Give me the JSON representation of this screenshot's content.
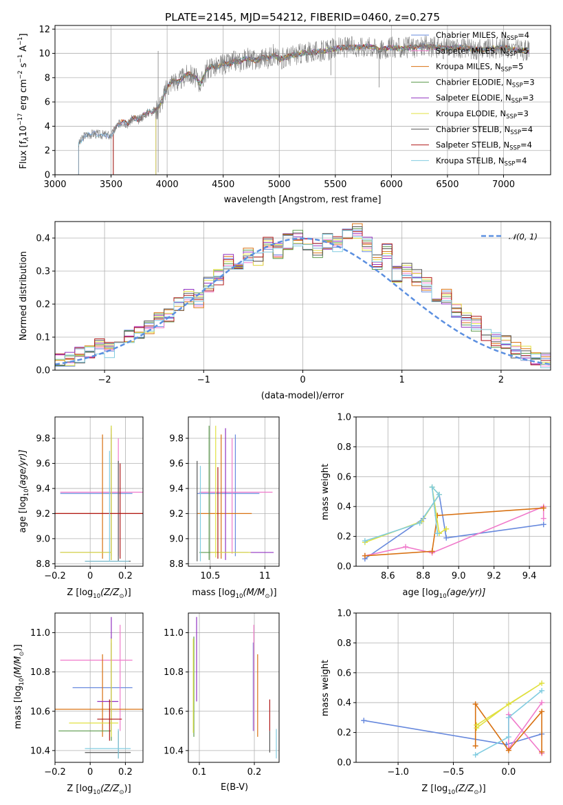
{
  "figure": {
    "title": "PLATE=2145, MJD=54212, FIBERID=0460, z=0.275"
  },
  "colors": {
    "Chabrier MILES": "#6688dd",
    "Salpeter MILES": "#f07acb",
    "Kroupa MILES": "#d87010",
    "Chabrier ELODIE": "#5a9a4a",
    "Salpeter ELODIE": "#9030c0",
    "Kroupa ELODIE": "#e0e040",
    "Chabrier STELIB": "#555555",
    "Salpeter STELIB": "#b01818",
    "Kroupa STELIB": "#80cce0",
    "data": "#7f7f7f",
    "normal": "#5b8fe0"
  },
  "chart_data": [
    {
      "id": "spectrum",
      "type": "line",
      "title": "PLATE=2145, MJD=54212, FIBERID=0460, z=0.275",
      "xlabel": "wavelength [Angstrom, rest frame]",
      "ylabel_main": "Flux [f",
      "ylabel_lambda": "λ",
      "ylabel_mid": "10",
      "ylabel_exp1": "−17",
      "ylabel_rest": " erg cm",
      "ylabel_exp2": "−2",
      "ylabel_s": " s",
      "ylabel_exp3": "−1",
      "ylabel_A": " A",
      "ylabel_exp4": "−1",
      "ylabel_end": "]",
      "xlim": [
        3000,
        7420
      ],
      "ylim": [
        0,
        12.3
      ],
      "xticks": [
        3000,
        3500,
        4000,
        4500,
        5000,
        5500,
        6000,
        6500,
        7000
      ],
      "yticks": [
        0,
        2,
        4,
        6,
        8,
        10,
        12
      ],
      "data_x": [
        3210,
        3260,
        3300,
        3350,
        3400,
        3450,
        3500,
        3550,
        3600,
        3650,
        3700,
        3750,
        3800,
        3850,
        3900,
        3950,
        4000,
        4050,
        4100,
        4150,
        4200,
        4250,
        4300,
        4350,
        4400,
        4450,
        4500,
        4550,
        4600,
        4650,
        4700,
        4750,
        4800,
        4850,
        4900,
        4950,
        5000,
        5100,
        5200,
        5300,
        5400,
        5500,
        5600,
        5700,
        5800,
        5900,
        6000,
        6100,
        6200,
        6300,
        6400,
        6500,
        6600,
        6700,
        6800,
        6900,
        7000,
        7100,
        7230
      ],
      "data_y": [
        2.5,
        3.2,
        3.3,
        3.4,
        3.3,
        3.3,
        3.2,
        4.0,
        4.4,
        4.2,
        4.7,
        4.5,
        5.0,
        5.2,
        5.3,
        6.0,
        7.2,
        7.8,
        7.6,
        8.1,
        8.3,
        8.0,
        7.5,
        8.6,
        9.0,
        8.8,
        9.2,
        9.1,
        9.4,
        9.3,
        9.6,
        9.5,
        9.4,
        9.7,
        9.6,
        9.9,
        9.5,
        9.8,
        10.0,
        10.1,
        10.2,
        10.4,
        10.5,
        10.5,
        10.6,
        10.3,
        10.5,
        10.4,
        10.5,
        10.6,
        10.5,
        10.4,
        10.5,
        10.4,
        10.3,
        10.4,
        10.5,
        10.3,
        10.2
      ],
      "legend": [
        {
          "label": "Chabrier MILES, N",
          "sub": "SSP",
          "tail": "=4"
        },
        {
          "label": "Salpeter MILES, N",
          "sub": "SSP",
          "tail": "=5"
        },
        {
          "label": "Kroupa MILES, N",
          "sub": "SSP",
          "tail": "=5"
        },
        {
          "label": "Chabrier ELODIE, N",
          "sub": "SSP",
          "tail": "=3"
        },
        {
          "label": "Salpeter ELODIE, N",
          "sub": "SSP",
          "tail": "=3"
        },
        {
          "label": "Kroupa ELODIE, N",
          "sub": "SSP",
          "tail": "=3"
        },
        {
          "label": "Chabrier STELIB, N",
          "sub": "SSP",
          "tail": "=4"
        },
        {
          "label": "Salpeter STELIB, N",
          "sub": "SSP",
          "tail": "=4"
        },
        {
          "label": "Kroupa STELIB, N",
          "sub": "SSP",
          "tail": "=4"
        }
      ],
      "legend_placement": "right"
    },
    {
      "id": "residuals",
      "type": "area",
      "xlabel": "(data-model)/error",
      "ylabel": "Normed distribution",
      "xlim": [
        -2.5,
        2.5
      ],
      "ylim": [
        0,
        0.45
      ],
      "xticks": [
        -2,
        -1,
        0,
        1,
        2
      ],
      "yticks": [
        0.0,
        0.1,
        0.2,
        0.3,
        0.4
      ],
      "bin_edges_start": -2.5,
      "bin_width": 0.1,
      "hist_values": [
        0.025,
        0.03,
        0.045,
        0.06,
        0.07,
        0.06,
        0.07,
        0.1,
        0.12,
        0.13,
        0.15,
        0.17,
        0.2,
        0.22,
        0.21,
        0.26,
        0.28,
        0.33,
        0.3,
        0.35,
        0.34,
        0.38,
        0.36,
        0.39,
        0.4,
        0.38,
        0.36,
        0.39,
        0.38,
        0.41,
        0.42,
        0.38,
        0.33,
        0.36,
        0.29,
        0.3,
        0.28,
        0.26,
        0.21,
        0.22,
        0.18,
        0.15,
        0.14,
        0.11,
        0.09,
        0.08,
        0.06,
        0.05,
        0.04,
        0.03
      ],
      "legend": {
        "label": "𝒩(0, 1)"
      },
      "legend_placement": "top-right"
    },
    {
      "id": "age-vs-Z",
      "type": "scatter",
      "xlabel": "Z [log",
      "xlabel_sub": "10",
      "xlabel_mid": "(Z/Z",
      "xlabel_sun": "⊙",
      "xlabel_end": ")]",
      "ylabel": "age  [log",
      "ylabel_sub": "10",
      "ylabel_end": "(age/yr)]",
      "xlim": [
        -0.2,
        0.3
      ],
      "ylim": [
        8.78,
        9.97
      ],
      "xticks": [
        -0.2,
        0.0,
        0.2
      ],
      "yticks": [
        8.8,
        9.0,
        9.2,
        9.4,
        9.6,
        9.8
      ]
    },
    {
      "id": "age-vs-mass",
      "type": "scatter",
      "xlabel": "mass [log",
      "xlabel_sub": "10",
      "xlabel_end": "(M/M",
      "xlabel_sun": "⊙",
      "xlabel_tail": ")]",
      "xlim": [
        10.3,
        11.13
      ],
      "ylim": [
        8.78,
        9.97
      ],
      "xticks": [
        10.5,
        11.0
      ],
      "yticks": [
        8.8,
        9.0,
        9.2,
        9.4,
        9.6,
        9.8
      ]
    },
    {
      "id": "massweight-vs-age",
      "type": "line",
      "xlabel": "age  [log",
      "xlabel_sub": "10",
      "xlabel_end": "(age/yr)]",
      "ylabel": "mass weight",
      "xlim": [
        8.42,
        9.52
      ],
      "ylim": [
        0,
        1
      ],
      "xticks": [
        8.6,
        8.8,
        9.0,
        9.2,
        9.4
      ],
      "yticks": [
        0.0,
        0.2,
        0.4,
        0.6,
        0.8,
        1.0
      ]
    },
    {
      "id": "mass-vs-Z",
      "type": "scatter",
      "xlabel": "Z [log",
      "xlabel_sub": "10",
      "xlabel_mid": "(Z/Z",
      "xlabel_sun": "⊙",
      "xlabel_end": ")]",
      "ylabel": "mass [log",
      "ylabel_sub": "10",
      "ylabel_end": "(M/M",
      "ylabel_sun": "⊙",
      "ylabel_tail": ")]",
      "xlim": [
        -0.2,
        0.3
      ],
      "ylim": [
        10.34,
        11.1
      ],
      "xticks": [
        -0.2,
        0.0,
        0.2
      ],
      "yticks": [
        10.4,
        10.6,
        10.8,
        11.0
      ]
    },
    {
      "id": "mass-vs-ebv",
      "type": "scatter",
      "xlabel": "E(B-V)",
      "xlim": [
        0.08,
        0.245
      ],
      "ylim": [
        10.34,
        11.1
      ],
      "xticks": [
        0.1,
        0.2
      ],
      "yticks": [
        10.4,
        10.6,
        10.8,
        11.0
      ]
    },
    {
      "id": "massweight-vs-Z",
      "type": "line",
      "xlabel": "Z [log",
      "xlabel_sub": "10",
      "xlabel_mid": "(Z/Z",
      "xlabel_sun": "⊙",
      "xlabel_end": ")]",
      "ylabel": "mass weight",
      "xlim": [
        -1.38,
        0.38
      ],
      "ylim": [
        0,
        1
      ],
      "xticks": [
        -1.0,
        -0.5,
        0.0
      ],
      "yticks": [
        0.0,
        0.2,
        0.4,
        0.6,
        0.8,
        1.0
      ]
    }
  ]
}
